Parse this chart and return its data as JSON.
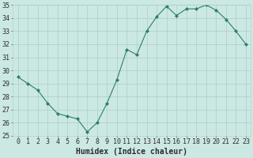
{
  "x": [
    0,
    1,
    2,
    3,
    4,
    5,
    6,
    7,
    8,
    9,
    10,
    11,
    12,
    13,
    14,
    15,
    16,
    17,
    18,
    19,
    20,
    21,
    22,
    23
  ],
  "y": [
    29.5,
    29.0,
    28.5,
    27.5,
    26.7,
    26.5,
    26.3,
    25.3,
    26.0,
    27.5,
    29.3,
    31.6,
    31.2,
    33.0,
    34.1,
    34.9,
    34.2,
    34.7,
    34.7,
    35.0,
    34.6,
    33.9,
    33.0,
    32.0
  ],
  "line_color": "#2d7d6e",
  "marker": "D",
  "marker_size": 2,
  "bg_color": "#cce8e2",
  "grid_color": "#aacfc9",
  "xlabel": "Humidex (Indice chaleur)",
  "ylim": [
    25,
    35
  ],
  "xlim": [
    -0.5,
    23.5
  ],
  "yticks": [
    25,
    26,
    27,
    28,
    29,
    30,
    31,
    32,
    33,
    34,
    35
  ],
  "xticks": [
    0,
    1,
    2,
    3,
    4,
    5,
    6,
    7,
    8,
    9,
    10,
    11,
    12,
    13,
    14,
    15,
    16,
    17,
    18,
    19,
    20,
    21,
    22,
    23
  ],
  "tick_fontsize": 6,
  "xlabel_fontsize": 7,
  "label_color": "#2d2d2d"
}
